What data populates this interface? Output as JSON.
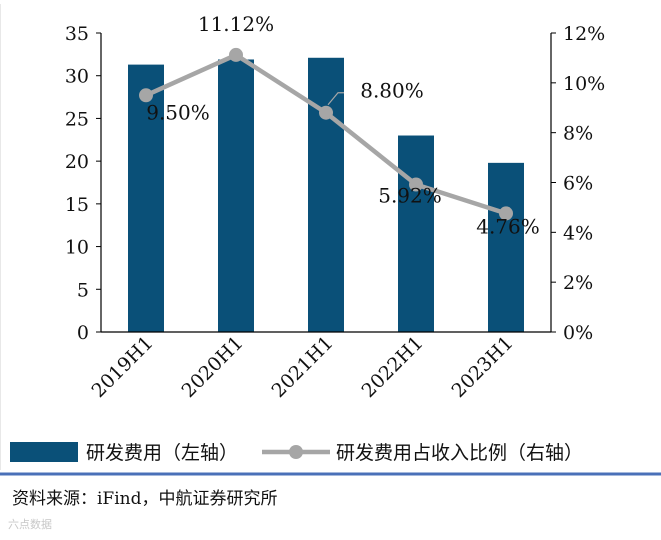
{
  "chart_data": {
    "type": "bar",
    "categories": [
      "2019H1",
      "2020H1",
      "2021H1",
      "2022H1",
      "2023H1"
    ],
    "series": [
      {
        "name": "研发费用（左轴）",
        "chart": "bar",
        "axis": "left",
        "values": [
          31.3,
          31.9,
          32.1,
          23.0,
          19.8
        ],
        "color": "#0a5078"
      },
      {
        "name": "研发费用占收入比例（右轴）",
        "chart": "line",
        "axis": "right",
        "values": [
          9.5,
          11.12,
          8.8,
          5.92,
          4.76
        ],
        "labels": [
          "9.50%",
          "11.12%",
          "8.80%",
          "5.92%",
          "4.76%"
        ],
        "color": "#a6a6a6"
      }
    ],
    "y_left": {
      "ylim": [
        0,
        35
      ],
      "ticks": [
        "0",
        "5",
        "10",
        "15",
        "20",
        "25",
        "30",
        "35"
      ]
    },
    "y_right": {
      "ylim": [
        0,
        12
      ],
      "ticks": [
        "0%",
        "2%",
        "4%",
        "6%",
        "8%",
        "10%",
        "12%"
      ]
    },
    "legend_position": "bottom",
    "grid": false
  },
  "source": "资料来源：iFind，中航证券研究所",
  "watermark": "六点数据"
}
